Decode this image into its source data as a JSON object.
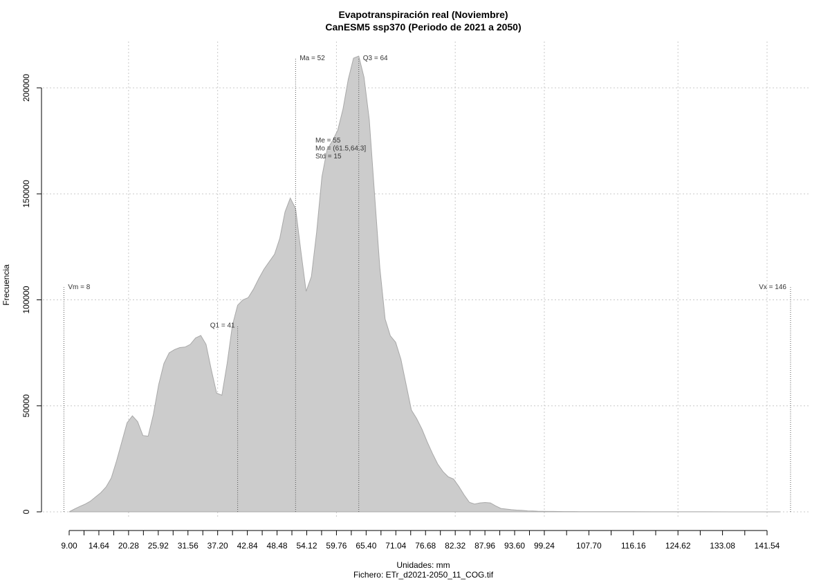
{
  "chart_data": {
    "type": "area",
    "title": "Evapotranspiración real (Noviembre)",
    "subtitle": "CanESM5 ssp370 (Periodo de 2021 a 2050)",
    "xlabel": "Unidades: mm",
    "ylabel": "Frecuencia",
    "caption": "Fichero: ETr_d2021-2050_11_COG.tif",
    "xlim": [
      9.0,
      141.54
    ],
    "ylim": [
      0,
      200000
    ],
    "grid": true,
    "x_tick_labels": [
      "9.00",
      "14.64",
      "20.28",
      "25.92",
      "31.56",
      "37.20",
      "42.84",
      "48.48",
      "54.12",
      "59.76",
      "65.40",
      "71.04",
      "76.68",
      "82.32",
      "87.96",
      "93.60",
      "99.24",
      "107.70",
      "116.16",
      "124.62",
      "133.08",
      "141.54"
    ],
    "x_tick_values": [
      9.0,
      14.64,
      20.28,
      25.92,
      31.56,
      37.2,
      42.84,
      48.48,
      54.12,
      59.76,
      65.4,
      71.04,
      76.68,
      82.32,
      87.96,
      93.6,
      99.24,
      107.7,
      116.16,
      124.62,
      133.08,
      141.54
    ],
    "y_ticks": [
      0,
      50000,
      100000,
      150000,
      200000
    ],
    "y_tick_labels": [
      "0",
      "50000",
      "100000",
      "150000",
      "200000"
    ],
    "x_grid_values": [
      20.28,
      37.2,
      59.76,
      82.32,
      99.24,
      124.62,
      141.54
    ],
    "fill_color": "#cccccc",
    "series": [
      {
        "x": [
          9,
          10,
          11,
          12,
          13,
          14,
          15,
          16,
          17,
          18,
          19,
          20,
          21,
          22,
          23,
          24,
          25,
          26,
          27,
          28,
          29,
          30,
          31,
          32,
          33,
          34,
          35,
          36,
          37,
          38,
          39,
          40,
          41,
          42,
          43,
          44,
          45,
          46,
          47,
          48,
          49,
          50,
          51,
          52,
          53,
          54,
          55,
          56,
          57,
          58,
          59,
          60,
          61,
          62,
          63,
          64,
          65,
          66,
          67,
          68,
          69,
          70,
          71,
          72,
          73,
          74,
          75,
          76,
          77,
          78,
          79,
          80,
          81,
          82,
          83,
          84,
          85,
          86,
          87,
          88,
          89,
          90,
          91,
          92,
          93,
          94,
          95,
          96,
          97,
          98,
          99,
          100,
          101,
          102,
          103,
          104,
          105,
          106,
          107,
          108,
          109,
          110,
          115,
          120,
          125,
          130,
          135,
          140,
          144
        ],
        "y": [
          0,
          1300,
          2500,
          3600,
          5000,
          7000,
          9000,
          11700,
          16000,
          24000,
          33000,
          42000,
          45300,
          42500,
          36000,
          35700,
          46000,
          60000,
          70000,
          75000,
          76500,
          77500,
          77700,
          79000,
          82000,
          83200,
          79000,
          67000,
          56000,
          55000,
          70000,
          88000,
          97500,
          100000,
          101000,
          105000,
          110000,
          114500,
          118000,
          121500,
          129000,
          141500,
          148000,
          143000,
          123000,
          104000,
          111000,
          132000,
          158000,
          171000,
          175000,
          180000,
          190000,
          204000,
          214000,
          215000,
          205000,
          185000,
          150000,
          115000,
          91000,
          83000,
          80000,
          72000,
          60000,
          48000,
          44000,
          39000,
          33000,
          27500,
          22500,
          19000,
          16500,
          15500,
          12000,
          8000,
          4500,
          3700,
          4200,
          4400,
          4200,
          2800,
          1600,
          1300,
          1000,
          800,
          700,
          500,
          400,
          300,
          250,
          200,
          180,
          160,
          140,
          130,
          120,
          110,
          100,
          90,
          80,
          70,
          50,
          40,
          30,
          20,
          10,
          5,
          0
        ]
      }
    ],
    "markers": [
      {
        "x": 8,
        "label": "Vm = 8",
        "top": 106000
      },
      {
        "x": 41,
        "label": "Q1 = 41",
        "top": 88000
      },
      {
        "x": 52,
        "label": "Ma = 52",
        "top": 214000
      },
      {
        "x": 64,
        "label": "Q3 = 64",
        "top": 214000
      },
      {
        "x": 146,
        "label": "Vx = 146",
        "top": 106000
      }
    ],
    "stats_text": [
      "Me = 55",
      "Mo = (61.5,64.3]",
      "Std = 15"
    ]
  }
}
